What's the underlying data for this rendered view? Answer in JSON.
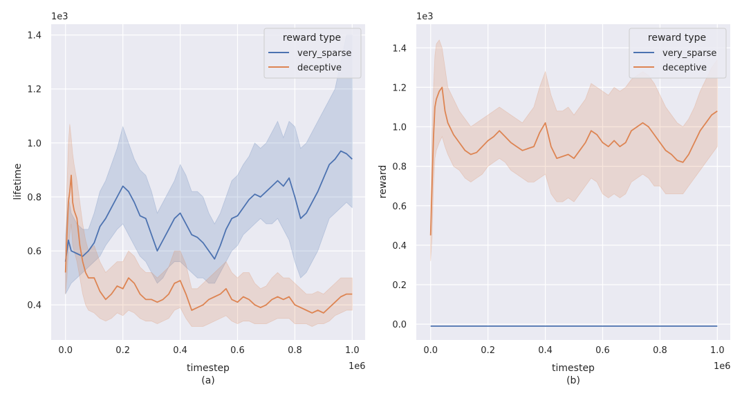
{
  "colors": {
    "very_sparse": "#4c72b0",
    "deceptive": "#dd8452",
    "panel_bg": "#eaeaf2",
    "grid": "#ffffff"
  },
  "chart_data": [
    {
      "type": "line",
      "caption": "(a)",
      "xlabel": "timestep",
      "ylabel": "lifetime",
      "x_offset": "1e6",
      "y_offset": "1e3",
      "xlim": [
        -0.05,
        1.045
      ],
      "ylim": [
        0.27,
        1.44
      ],
      "xticks": [
        0.0,
        0.2,
        0.4,
        0.6,
        0.8,
        1.0
      ],
      "xtick_labels": [
        "0.0",
        "0.2",
        "0.4",
        "0.6",
        "0.8",
        "1.0"
      ],
      "yticks": [
        0.4,
        0.6,
        0.8,
        1.0,
        1.2,
        1.4
      ],
      "ytick_labels": [
        "0.4",
        "0.6",
        "0.8",
        "1.0",
        "1.2",
        "1.4"
      ],
      "legend": {
        "title": "reward type",
        "position": "top-right",
        "entries": [
          "very_sparse",
          "deceptive"
        ]
      },
      "series": [
        {
          "name": "very_sparse",
          "x": [
            0.0,
            0.01,
            0.02,
            0.04,
            0.06,
            0.08,
            0.1,
            0.12,
            0.14,
            0.16,
            0.18,
            0.2,
            0.22,
            0.24,
            0.26,
            0.28,
            0.3,
            0.32,
            0.34,
            0.36,
            0.38,
            0.4,
            0.42,
            0.44,
            0.46,
            0.48,
            0.5,
            0.52,
            0.54,
            0.56,
            0.58,
            0.6,
            0.62,
            0.64,
            0.66,
            0.68,
            0.7,
            0.72,
            0.74,
            0.76,
            0.78,
            0.8,
            0.82,
            0.84,
            0.86,
            0.88,
            0.9,
            0.92,
            0.94,
            0.96,
            0.98,
            1.0
          ],
          "values": [
            0.56,
            0.64,
            0.6,
            0.59,
            0.58,
            0.6,
            0.63,
            0.69,
            0.72,
            0.76,
            0.8,
            0.84,
            0.82,
            0.78,
            0.73,
            0.72,
            0.66,
            0.6,
            0.64,
            0.68,
            0.72,
            0.74,
            0.7,
            0.66,
            0.65,
            0.63,
            0.6,
            0.57,
            0.62,
            0.68,
            0.72,
            0.73,
            0.76,
            0.79,
            0.81,
            0.8,
            0.82,
            0.84,
            0.86,
            0.84,
            0.87,
            0.8,
            0.72,
            0.74,
            0.78,
            0.82,
            0.87,
            0.92,
            0.94,
            0.97,
            0.96,
            0.94
          ],
          "lower": [
            0.44,
            0.46,
            0.48,
            0.5,
            0.52,
            0.54,
            0.56,
            0.58,
            0.62,
            0.65,
            0.68,
            0.7,
            0.66,
            0.62,
            0.58,
            0.56,
            0.52,
            0.48,
            0.5,
            0.54,
            0.56,
            0.56,
            0.54,
            0.52,
            0.5,
            0.5,
            0.48,
            0.48,
            0.52,
            0.56,
            0.6,
            0.62,
            0.66,
            0.68,
            0.7,
            0.72,
            0.7,
            0.7,
            0.72,
            0.68,
            0.64,
            0.56,
            0.5,
            0.52,
            0.56,
            0.6,
            0.66,
            0.72,
            0.74,
            0.76,
            0.78,
            0.76
          ],
          "upper": [
            0.66,
            0.8,
            0.74,
            0.7,
            0.68,
            0.68,
            0.74,
            0.82,
            0.86,
            0.92,
            0.98,
            1.06,
            1.0,
            0.94,
            0.9,
            0.88,
            0.82,
            0.74,
            0.78,
            0.82,
            0.86,
            0.92,
            0.88,
            0.82,
            0.82,
            0.8,
            0.74,
            0.7,
            0.74,
            0.8,
            0.86,
            0.88,
            0.92,
            0.95,
            1.0,
            0.98,
            1.0,
            1.04,
            1.08,
            1.02,
            1.08,
            1.06,
            0.98,
            1.0,
            1.04,
            1.08,
            1.12,
            1.16,
            1.2,
            1.3,
            1.4,
            1.4
          ]
        },
        {
          "name": "deceptive",
          "x": [
            0.0,
            0.005,
            0.01,
            0.015,
            0.02,
            0.025,
            0.03,
            0.04,
            0.05,
            0.06,
            0.07,
            0.08,
            0.1,
            0.12,
            0.14,
            0.16,
            0.18,
            0.2,
            0.22,
            0.24,
            0.26,
            0.28,
            0.3,
            0.32,
            0.34,
            0.36,
            0.38,
            0.4,
            0.42,
            0.44,
            0.46,
            0.48,
            0.5,
            0.52,
            0.54,
            0.56,
            0.58,
            0.6,
            0.62,
            0.64,
            0.66,
            0.68,
            0.7,
            0.72,
            0.74,
            0.76,
            0.78,
            0.8,
            0.82,
            0.84,
            0.86,
            0.88,
            0.9,
            0.92,
            0.94,
            0.96,
            0.98,
            1.0
          ],
          "values": [
            0.52,
            0.66,
            0.78,
            0.82,
            0.88,
            0.78,
            0.75,
            0.72,
            0.62,
            0.56,
            0.52,
            0.5,
            0.5,
            0.45,
            0.42,
            0.44,
            0.47,
            0.46,
            0.5,
            0.48,
            0.44,
            0.42,
            0.42,
            0.41,
            0.42,
            0.44,
            0.48,
            0.49,
            0.44,
            0.38,
            0.39,
            0.4,
            0.42,
            0.43,
            0.44,
            0.46,
            0.42,
            0.41,
            0.43,
            0.42,
            0.4,
            0.39,
            0.4,
            0.42,
            0.43,
            0.42,
            0.43,
            0.4,
            0.39,
            0.38,
            0.37,
            0.38,
            0.37,
            0.39,
            0.41,
            0.43,
            0.44,
            0.44
          ],
          "lower": [
            0.44,
            0.5,
            0.6,
            0.66,
            0.7,
            0.62,
            0.6,
            0.56,
            0.5,
            0.44,
            0.4,
            0.38,
            0.37,
            0.35,
            0.34,
            0.35,
            0.37,
            0.36,
            0.38,
            0.37,
            0.35,
            0.34,
            0.34,
            0.33,
            0.34,
            0.35,
            0.38,
            0.39,
            0.35,
            0.32,
            0.32,
            0.32,
            0.33,
            0.34,
            0.35,
            0.36,
            0.34,
            0.33,
            0.34,
            0.34,
            0.33,
            0.33,
            0.33,
            0.34,
            0.35,
            0.35,
            0.35,
            0.33,
            0.33,
            0.33,
            0.32,
            0.33,
            0.33,
            0.34,
            0.36,
            0.37,
            0.38,
            0.38
          ],
          "upper": [
            0.62,
            0.84,
            1.0,
            1.07,
            1.02,
            0.96,
            0.92,
            0.86,
            0.78,
            0.7,
            0.64,
            0.6,
            0.62,
            0.56,
            0.52,
            0.54,
            0.56,
            0.56,
            0.6,
            0.58,
            0.54,
            0.52,
            0.52,
            0.5,
            0.52,
            0.54,
            0.6,
            0.6,
            0.55,
            0.46,
            0.46,
            0.48,
            0.5,
            0.52,
            0.54,
            0.56,
            0.52,
            0.5,
            0.52,
            0.52,
            0.48,
            0.46,
            0.47,
            0.5,
            0.52,
            0.5,
            0.5,
            0.48,
            0.46,
            0.44,
            0.44,
            0.45,
            0.44,
            0.46,
            0.48,
            0.5,
            0.5,
            0.5
          ]
        }
      ]
    },
    {
      "type": "line",
      "caption": "(b)",
      "xlabel": "timestep",
      "ylabel": "reward",
      "x_offset": "1e6",
      "y_offset": "1e3",
      "xlim": [
        -0.05,
        1.045
      ],
      "ylim": [
        -0.08,
        1.52
      ],
      "xticks": [
        0.0,
        0.2,
        0.4,
        0.6,
        0.8,
        1.0
      ],
      "xtick_labels": [
        "0.0",
        "0.2",
        "0.4",
        "0.6",
        "0.8",
        "1.0"
      ],
      "yticks": [
        0.0,
        0.2,
        0.4,
        0.6,
        0.8,
        1.0,
        1.2,
        1.4
      ],
      "ytick_labels": [
        "0.0",
        "0.2",
        "0.4",
        "0.6",
        "0.8",
        "1.0",
        "1.2",
        "1.4"
      ],
      "legend": {
        "title": "reward type",
        "position": "top-right",
        "entries": [
          "very_sparse",
          "deceptive"
        ]
      },
      "series": [
        {
          "name": "very_sparse",
          "x": [
            0.0,
            1.0
          ],
          "values": [
            -0.01,
            -0.01
          ]
        },
        {
          "name": "deceptive",
          "x": [
            0.0,
            0.005,
            0.01,
            0.015,
            0.02,
            0.03,
            0.04,
            0.05,
            0.06,
            0.08,
            0.1,
            0.12,
            0.14,
            0.16,
            0.18,
            0.2,
            0.22,
            0.24,
            0.26,
            0.28,
            0.3,
            0.32,
            0.34,
            0.36,
            0.38,
            0.4,
            0.42,
            0.44,
            0.46,
            0.48,
            0.5,
            0.52,
            0.54,
            0.56,
            0.58,
            0.6,
            0.62,
            0.64,
            0.66,
            0.68,
            0.7,
            0.72,
            0.74,
            0.76,
            0.78,
            0.8,
            0.82,
            0.84,
            0.86,
            0.88,
            0.9,
            0.92,
            0.94,
            0.96,
            0.98,
            1.0
          ],
          "values": [
            0.45,
            0.7,
            0.95,
            1.1,
            1.14,
            1.18,
            1.2,
            1.08,
            1.02,
            0.96,
            0.92,
            0.88,
            0.86,
            0.87,
            0.9,
            0.93,
            0.95,
            0.98,
            0.95,
            0.92,
            0.9,
            0.88,
            0.89,
            0.9,
            0.97,
            1.02,
            0.9,
            0.84,
            0.85,
            0.86,
            0.84,
            0.88,
            0.92,
            0.98,
            0.96,
            0.92,
            0.9,
            0.93,
            0.9,
            0.92,
            0.98,
            1.0,
            1.02,
            1.0,
            0.96,
            0.92,
            0.88,
            0.86,
            0.83,
            0.82,
            0.86,
            0.92,
            0.98,
            1.02,
            1.06,
            1.08
          ],
          "lower": [
            0.32,
            0.44,
            0.7,
            0.84,
            0.88,
            0.92,
            0.95,
            0.9,
            0.86,
            0.8,
            0.78,
            0.74,
            0.72,
            0.74,
            0.76,
            0.8,
            0.82,
            0.84,
            0.82,
            0.78,
            0.76,
            0.74,
            0.72,
            0.72,
            0.74,
            0.76,
            0.66,
            0.62,
            0.62,
            0.64,
            0.62,
            0.66,
            0.7,
            0.74,
            0.72,
            0.66,
            0.64,
            0.66,
            0.64,
            0.66,
            0.72,
            0.74,
            0.76,
            0.74,
            0.7,
            0.7,
            0.66,
            0.66,
            0.66,
            0.66,
            0.7,
            0.74,
            0.78,
            0.82,
            0.86,
            0.9
          ],
          "upper": [
            0.6,
            0.96,
            1.2,
            1.36,
            1.42,
            1.44,
            1.4,
            1.3,
            1.2,
            1.14,
            1.08,
            1.04,
            1.0,
            1.02,
            1.04,
            1.06,
            1.08,
            1.1,
            1.08,
            1.06,
            1.04,
            1.02,
            1.06,
            1.1,
            1.2,
            1.28,
            1.16,
            1.08,
            1.08,
            1.1,
            1.06,
            1.1,
            1.14,
            1.22,
            1.2,
            1.18,
            1.16,
            1.2,
            1.18,
            1.2,
            1.24,
            1.26,
            1.28,
            1.26,
            1.22,
            1.16,
            1.1,
            1.06,
            1.02,
            1.0,
            1.04,
            1.1,
            1.18,
            1.24,
            1.3,
            1.34
          ]
        }
      ]
    }
  ]
}
